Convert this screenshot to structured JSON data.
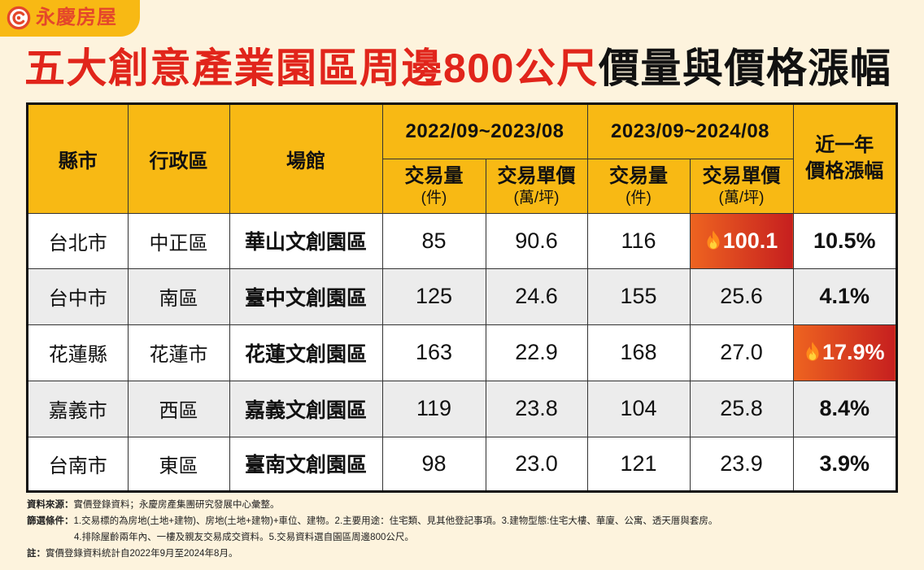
{
  "logo": {
    "text": "永慶房屋",
    "icon": "swirl-logo-icon"
  },
  "title": {
    "red_part": "五大創意產業園區周邊800公尺",
    "black_part": "價量與價格漲幅"
  },
  "colors": {
    "background": "#fdf3dd",
    "header_yellow": "#f8b914",
    "title_red": "#e1251b",
    "logo_red": "#e4472b",
    "row_alt": "#ececec",
    "hot_start": "#ee6420",
    "hot_end": "#c61f1f"
  },
  "chart_data": {
    "type": "table",
    "headers": {
      "city": "縣市",
      "district": "行政區",
      "venue": "場館",
      "period_1": "2022/09~2023/08",
      "period_2": "2023/09~2024/08",
      "volume": "交易量",
      "volume_unit": "(件)",
      "unit_price": "交易單價",
      "unit_price_unit": "(萬/坪)",
      "change_line1": "近一年",
      "change_line2": "價格漲幅"
    },
    "rows": [
      {
        "city": "台北市",
        "district": "中正區",
        "venue": "華山文創園區",
        "volume_1": "85",
        "price_1": "90.6",
        "volume_2": "116",
        "price_2": "100.1",
        "change": "10.5%",
        "price_2_icon": "fire-icon"
      },
      {
        "city": "台中市",
        "district": "南區",
        "venue": "臺中文創園區",
        "volume_1": "125",
        "price_1": "24.6",
        "volume_2": "155",
        "price_2": "25.6",
        "change": "4.1%"
      },
      {
        "city": "花蓮縣",
        "district": "花蓮市",
        "venue": "花蓮文創園區",
        "volume_1": "163",
        "price_1": "22.9",
        "volume_2": "168",
        "price_2": "27.0",
        "change": "17.9%",
        "change_icon": "fire-icon"
      },
      {
        "city": "嘉義市",
        "district": "西區",
        "venue": "嘉義文創園區",
        "volume_1": "119",
        "price_1": "23.8",
        "volume_2": "104",
        "price_2": "25.8",
        "change": "8.4%"
      },
      {
        "city": "台南市",
        "district": "東區",
        "venue": "臺南文創園區",
        "volume_1": "98",
        "price_1": "23.0",
        "volume_2": "121",
        "price_2": "23.9",
        "change": "3.9%"
      }
    ]
  },
  "footer": {
    "source_label": "資料來源：",
    "source_text": "實價登錄資料；永慶房產集團研究發展中心彙整。",
    "criteria_label": "篩選條件：",
    "criteria_line1": "1.交易標的為房地(土地+建物)、房地(土地+建物)+車位、建物。2.主要用途：住宅類、見其他登記事項。3.建物型態:住宅大樓、華廈、公寓、透天厝與套房。",
    "criteria_line2": "4.排除屋齡兩年內、一樓及親友交易成交資料。5.交易資料選自園區周邊800公尺。",
    "note_label": "註：",
    "note_text": "實價登錄資料統計自2022年9月至2024年8月。"
  }
}
